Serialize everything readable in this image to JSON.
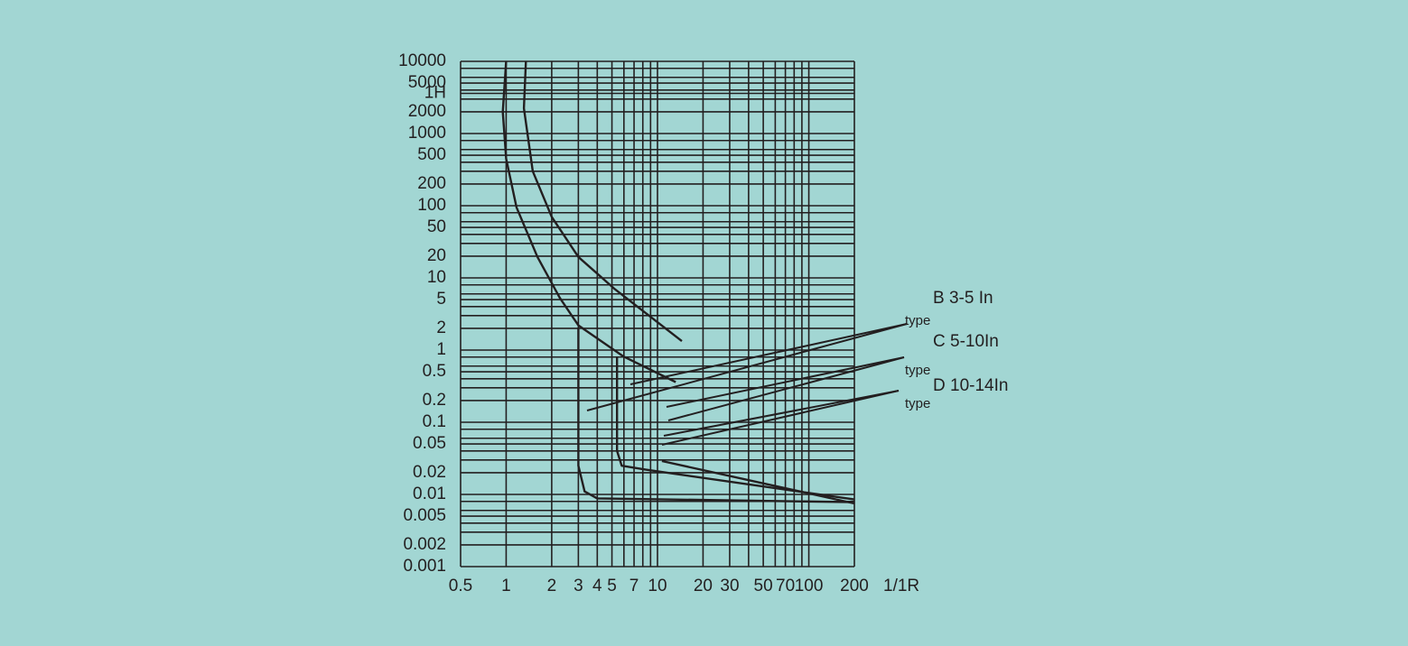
{
  "chart_data": {
    "type": "line",
    "x_label": "1/1R",
    "log_x": true,
    "log_y": true,
    "grid": true,
    "color": "#231f20",
    "xlim": [
      0.5,
      200
    ],
    "ylim": [
      0.001,
      10000
    ],
    "xticks": [
      0.5,
      1,
      2,
      3,
      4,
      5,
      7,
      10,
      20,
      30,
      50,
      70,
      100,
      200
    ],
    "yticks": [
      0.001,
      0.002,
      0.005,
      0.01,
      0.02,
      0.05,
      0.1,
      0.2,
      0.5,
      1,
      2,
      5,
      10,
      20,
      50,
      100,
      200,
      500,
      1000,
      2000,
      {
        "value": 3600,
        "label": "1H"
      },
      5000,
      10000
    ],
    "xminor": [
      6,
      8,
      9,
      40,
      60,
      80,
      90
    ],
    "yminor": [
      0.003,
      0.004,
      0.006,
      0.008,
      0.03,
      0.04,
      0.06,
      0.08,
      0.3,
      0.4,
      0.6,
      0.8,
      3,
      4,
      6,
      8,
      30,
      40,
      60,
      80,
      300,
      400,
      600,
      800,
      3000,
      4000,
      6000,
      8000
    ],
    "series": [
      {
        "x": [
          1.0,
          0.95,
          1.0,
          1.17,
          1.61,
          2.26,
          3.0,
          5.93,
          13.2
        ],
        "values": [
          10000,
          2000,
          450,
          95,
          19.5,
          5.3,
          2.2,
          0.82,
          0.36
        ]
      },
      {
        "x": [
          1.35,
          1.31,
          1.5,
          2.0,
          3.0,
          5.18,
          14.5
        ],
        "values": [
          10000,
          2240,
          300,
          70,
          19.5,
          7.1,
          1.33
        ]
      },
      {
        "x": [
          3.0,
          3.0,
          3.3,
          4.0,
          200
        ],
        "values": [
          2.0,
          0.025,
          0.011,
          0.0088,
          0.0078
        ]
      },
      {
        "x": [
          5.4,
          5.4,
          5.8,
          8.4,
          200
        ],
        "values": [
          0.8,
          0.04,
          0.025,
          0.022,
          0.0085
        ]
      },
      {
        "x": [
          10.7,
          200
        ],
        "values": [
          0.029,
          0.0075
        ]
      }
    ],
    "annotations": [
      {
        "text": "B 3-5 In",
        "sub": "type"
      },
      {
        "text": "C 5-10In",
        "sub": "type"
      },
      {
        "text": "D 10-14In",
        "sub": "type"
      }
    ]
  }
}
